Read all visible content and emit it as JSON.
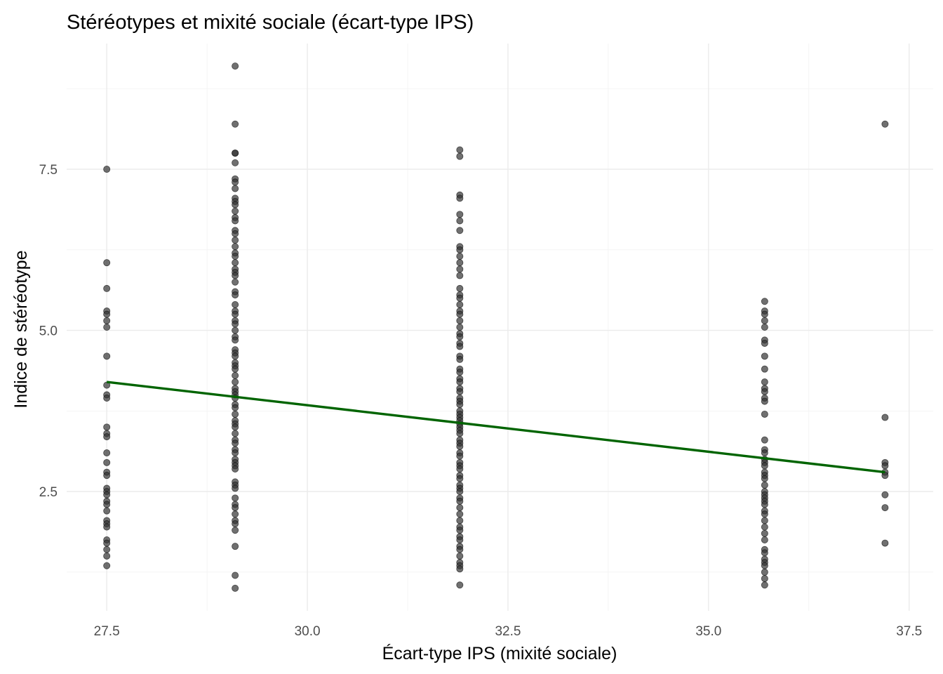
{
  "chart_data": {
    "type": "scatter",
    "title": "Stéréotypes et mixité sociale (écart-type IPS)",
    "xlabel": "Écart-type IPS (mixité sociale)",
    "ylabel": "Indice de stéréotype",
    "xlim": [
      27.0,
      37.8
    ],
    "ylim": [
      0.65,
      9.45
    ],
    "x_ticks": [
      27.5,
      30.0,
      32.5,
      35.0,
      37.5
    ],
    "x_tick_labels": [
      "27.5",
      "30.0",
      "32.5",
      "35.0",
      "37.5"
    ],
    "y_ticks": [
      2.5,
      5.0,
      7.5
    ],
    "y_tick_labels": [
      "2.5",
      "5.0",
      "7.5"
    ],
    "grid": true,
    "point_color": "#333333",
    "point_opacity": 0.7,
    "groups": [
      {
        "x": 27.5,
        "y": [
          7.5,
          6.05,
          5.65,
          5.3,
          5.25,
          5.15,
          5.05,
          4.6,
          4.15,
          4.0,
          3.95,
          3.5,
          3.4,
          3.35,
          3.1,
          2.95,
          2.8,
          2.75,
          2.55,
          2.5,
          2.45,
          2.35,
          2.3,
          2.2,
          2.05,
          2.0,
          1.95,
          1.75,
          1.7,
          1.6,
          1.5,
          1.35
        ]
      },
      {
        "x": 29.1,
        "y": [
          9.1,
          8.2,
          7.75,
          7.75,
          7.6,
          7.35,
          7.3,
          7.2,
          7.05,
          7.0,
          6.95,
          6.85,
          6.75,
          6.7,
          6.55,
          6.5,
          6.4,
          6.3,
          6.2,
          6.15,
          6.05,
          5.95,
          5.9,
          5.85,
          5.75,
          5.6,
          5.55,
          5.4,
          5.3,
          5.25,
          5.15,
          5.1,
          5.0,
          4.9,
          4.85,
          4.7,
          4.65,
          4.6,
          4.5,
          4.45,
          4.4,
          4.3,
          4.2,
          4.1,
          4.05,
          4.0,
          3.95,
          3.85,
          3.8,
          3.7,
          3.6,
          3.55,
          3.5,
          3.4,
          3.3,
          3.25,
          3.15,
          3.1,
          3.0,
          2.95,
          2.9,
          2.85,
          2.65,
          2.6,
          2.55,
          2.4,
          2.3,
          2.25,
          2.15,
          2.05,
          2.0,
          1.9,
          1.65,
          1.2,
          1.0
        ]
      },
      {
        "x": 31.9,
        "y": [
          7.8,
          7.7,
          7.1,
          7.05,
          6.8,
          6.7,
          6.55,
          6.3,
          6.25,
          6.15,
          6.05,
          5.95,
          5.85,
          5.65,
          5.55,
          5.5,
          5.4,
          5.3,
          5.25,
          5.15,
          5.05,
          4.95,
          4.9,
          4.8,
          4.75,
          4.6,
          4.55,
          4.4,
          4.35,
          4.25,
          4.2,
          4.1,
          4.05,
          3.95,
          3.9,
          3.85,
          3.75,
          3.7,
          3.65,
          3.6,
          3.55,
          3.5,
          3.45,
          3.4,
          3.3,
          3.25,
          3.2,
          3.1,
          3.05,
          2.95,
          2.9,
          2.85,
          2.75,
          2.7,
          2.6,
          2.55,
          2.5,
          2.4,
          2.35,
          2.25,
          2.15,
          2.05,
          1.95,
          1.9,
          1.8,
          1.75,
          1.65,
          1.6,
          1.5,
          1.4,
          1.35,
          1.3,
          1.05
        ]
      },
      {
        "x": 35.7,
        "y": [
          5.45,
          5.3,
          5.25,
          5.15,
          5.05,
          4.85,
          4.8,
          4.6,
          4.4,
          4.2,
          4.1,
          4.05,
          3.95,
          3.9,
          3.7,
          3.3,
          3.15,
          3.1,
          3.0,
          2.95,
          2.9,
          2.8,
          2.75,
          2.7,
          2.6,
          2.5,
          2.45,
          2.4,
          2.35,
          2.3,
          2.2,
          2.15,
          2.05,
          1.95,
          1.85,
          1.75,
          1.6,
          1.55,
          1.45,
          1.4,
          1.35,
          1.25,
          1.15,
          1.05
        ]
      },
      {
        "x": 37.2,
        "y": [
          8.2,
          3.65,
          2.95,
          2.9,
          2.8,
          2.75,
          2.45,
          2.25,
          1.7
        ]
      }
    ],
    "trend_line": {
      "x": [
        27.5,
        37.2
      ],
      "y": [
        4.2,
        2.8
      ],
      "color": "#006400"
    }
  }
}
